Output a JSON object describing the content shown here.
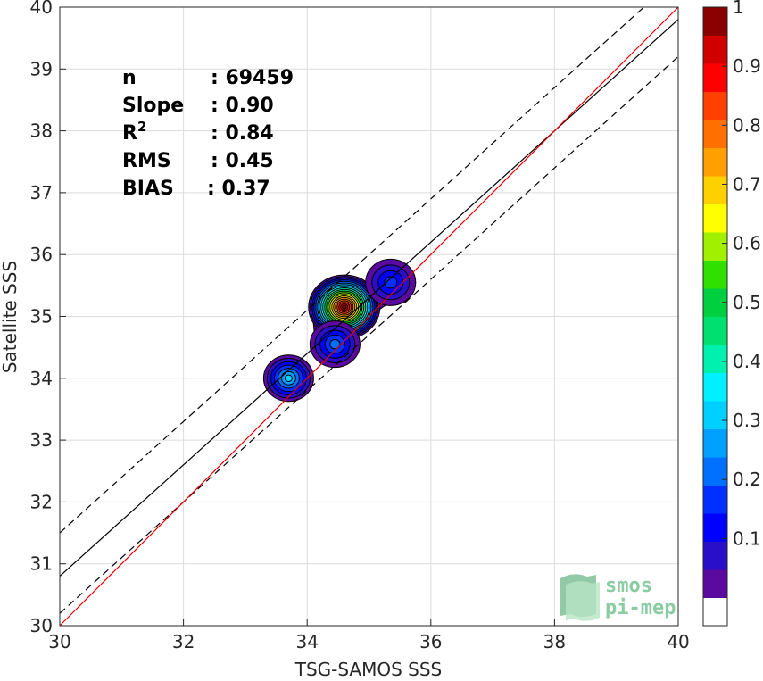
{
  "chart_data": {
    "type": "contour-scatter",
    "xlabel": "TSG-SAMOS SSS",
    "ylabel": "Satellite SSS",
    "xlim": [
      30,
      40
    ],
    "ylim": [
      30,
      40
    ],
    "xticks": [
      "30",
      "32",
      "34",
      "36",
      "38",
      "40"
    ],
    "yticks": [
      "30",
      "31",
      "32",
      "33",
      "34",
      "35",
      "36",
      "37",
      "38",
      "39",
      "40"
    ],
    "grid": true,
    "stats": [
      {
        "label": "n",
        "value": ": 69459"
      },
      {
        "label": "Slope",
        "value": ": 0.90"
      },
      {
        "label": "R",
        "label_sup": "2",
        "value": ": 0.84"
      },
      {
        "label": "RMS",
        "value": ": 0.45"
      },
      {
        "label": "BIAS",
        "value": ": 0.37"
      }
    ],
    "lines": {
      "one_to_one": {
        "color": "#e60000",
        "slope": 1.0,
        "intercept": 0.0
      },
      "regression": {
        "color": "#000000",
        "slope": 0.9,
        "intercept": 3.8
      },
      "regression_upper": {
        "color": "#000000",
        "dashed": true,
        "slope": 0.9,
        "intercept": 4.5
      },
      "regression_lower": {
        "color": "#000000",
        "dashed": true,
        "slope": 0.9,
        "intercept": 3.2
      }
    },
    "density_clusters": [
      {
        "x": 34.6,
        "y": 35.15,
        "peak": 1.0
      },
      {
        "x": 34.45,
        "y": 34.55,
        "peak": 0.25
      },
      {
        "x": 35.35,
        "y": 35.55,
        "peak": 0.2
      },
      {
        "x": 33.7,
        "y": 34.0,
        "peak": 0.35
      }
    ],
    "colorbar": {
      "range": [
        0,
        1
      ],
      "ticks": [
        "0.1",
        "0.2",
        "0.3",
        "0.4",
        "0.5",
        "0.6",
        "0.7",
        "0.8",
        "0.9",
        "1"
      ],
      "colors": [
        "#ffffff",
        "#5a0a9e",
        "#2a0fc8",
        "#0000ff",
        "#0030ff",
        "#0070ff",
        "#00a0ff",
        "#00d0ff",
        "#00f0ff",
        "#00f0b0",
        "#00e070",
        "#00d040",
        "#30e000",
        "#a0f000",
        "#ffff00",
        "#ffd000",
        "#ffa000",
        "#ff7000",
        "#ff4000",
        "#ff0000",
        "#d00000",
        "#8b0000"
      ]
    }
  },
  "logo": {
    "line1": "smos",
    "line2": "pi-mep"
  }
}
